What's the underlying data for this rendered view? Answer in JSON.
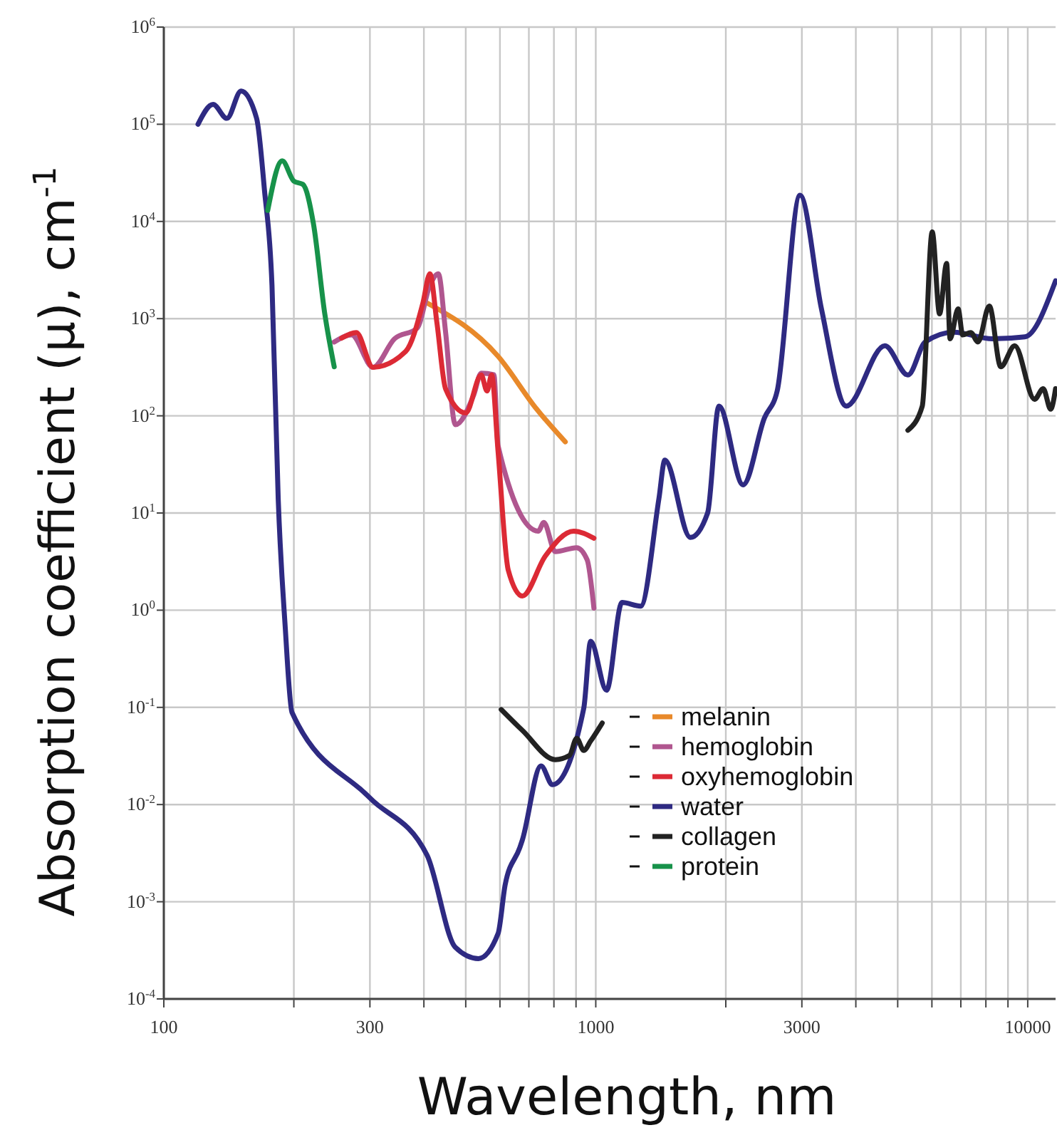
{
  "chart_data": {
    "type": "line",
    "xlabel": "Wavelength, nm",
    "ylabel": "Absorption coefficient (μ), cm$^{-1}$",
    "log": "xy",
    "grid": true,
    "legend": "bottom right",
    "xlim": [
      100,
      11600
    ],
    "ylim": [
      0.0001,
      1000000
    ],
    "xticks": [
      100,
      {
        "value": 200,
        "label": null
      },
      300,
      {
        "value": 400,
        "label": null
      },
      {
        "value": 500,
        "label": null
      },
      {
        "value": 600,
        "label": null
      },
      {
        "value": 700,
        "label": null
      },
      {
        "value": 800,
        "label": null
      },
      {
        "value": 900,
        "label": null
      },
      1000,
      {
        "value": 2000,
        "label": null
      },
      3000,
      {
        "value": 4000,
        "label": null
      },
      {
        "value": 5000,
        "label": null
      },
      {
        "value": 6000,
        "label": null
      },
      {
        "value": 7000,
        "label": null
      },
      {
        "value": 8000,
        "label": null
      },
      {
        "value": 9000,
        "label": null
      },
      10000
    ],
    "yticks": [
      {
        "value": 0.0001,
        "label": "10$^{-4}$"
      },
      {
        "value": 0.001,
        "label": "10$^{-3}$"
      },
      {
        "value": 0.01,
        "label": "10$^{-2}$"
      },
      {
        "value": 0.1,
        "label": "10$^{-1}$"
      },
      {
        "value": 1,
        "label": "10$^{0}$"
      },
      {
        "value": 10,
        "label": "10$^{1}$"
      },
      {
        "value": 100,
        "label": "10$^{2}$"
      },
      {
        "value": 1000,
        "label": "10$^{3}$"
      },
      {
        "value": 10000,
        "label": "10$^{4}$"
      },
      {
        "value": 100000,
        "label": "10$^{5}$"
      },
      {
        "value": 1000000,
        "label": "10$^{6}$"
      }
    ],
    "series": [
      {
        "name": "melanin",
        "color": "#e8892a",
        "x": [
          407,
          594,
          730,
          850
        ],
        "values": [
          1450,
          410,
          117,
          54
        ]
      },
      {
        "name": "hemoglobin",
        "color": "#b0568f",
        "x": [
          248,
          272,
          305,
          342,
          386,
          413,
          432,
          449,
          473,
          522,
          543,
          581,
          594,
          736,
          758,
          806,
          903,
          955,
          990
        ],
        "values": [
          575,
          680,
          316,
          620,
          800,
          2200,
          2900,
          730,
          81,
          165,
          275,
          265,
          49,
          6.5,
          8,
          4,
          4.4,
          3.3,
          1.05
        ]
      },
      {
        "name": "oxyhemoglobin",
        "color": "#dc2a35",
        "x": [
          258,
          279,
          305,
          363,
          398,
          413,
          429,
          449,
          500,
          543,
          560,
          574,
          594,
          627,
          676,
          764,
          889,
          990
        ],
        "values": [
          630,
          720,
          316,
          460,
          1450,
          2900,
          890,
          190,
          107,
          263,
          180,
          263,
          43,
          2.6,
          1.4,
          3.6,
          6.5,
          5.5
        ]
      },
      {
        "name": "water",
        "color": "#2e2a82",
        "x": [
          120,
          130,
          140,
          151,
          164,
          171,
          178,
          184,
          191,
          198,
          300,
          407,
          473,
          535,
          594,
          617,
          667,
          676,
          747,
          794,
          938,
          973,
          1059,
          1150,
          1270,
          1400,
          1445,
          1656,
          1815,
          1928,
          2193,
          2457,
          2630,
          2971,
          3330,
          3800,
          4670,
          5280,
          5790,
          6740,
          8280,
          9850,
          11600
        ],
        "values": [
          100000,
          160000,
          115000,
          220000,
          115000,
          21000,
          2200,
          14,
          0.67,
          0.089,
          0.0117,
          0.003,
          0.00034,
          0.00026,
          0.00047,
          0.0015,
          0.0036,
          0.0043,
          0.025,
          0.016,
          0.098,
          0.48,
          0.15,
          1.2,
          1.1,
          14,
          35,
          5.6,
          10,
          126,
          19.5,
          95,
          180,
          18600,
          1260,
          126,
          525,
          263,
          575,
          725,
          620,
          650,
          2450
        ]
      },
      {
        "name": "collagen",
        "color": "#222222",
        "x": [
          604,
          676,
          806,
          869,
          903,
          938,
          973,
          1035,
          3000,
          5280,
          5700,
          6010,
          6250,
          6490,
          6610,
          6900,
          7070,
          7380,
          7670,
          8150,
          8660,
          9330,
          10370,
          10860,
          11300,
          11600
        ],
        "values": [
          0.095,
          0.058,
          0.029,
          0.032,
          0.048,
          0.036,
          0.045,
          0.069,
          null,
          71,
          126,
          7800,
          1120,
          3700,
          620,
          1260,
          680,
          720,
          575,
          1350,
          320,
          525,
          148,
          190,
          117,
          190
        ]
      },
      {
        "name": "protein",
        "color": "#17924a",
        "x": [
          174,
          188,
          200,
          210,
          222,
          236,
          248
        ],
        "values": [
          13000,
          42000,
          26000,
          24000,
          9500,
          1100,
          320
        ]
      }
    ]
  }
}
